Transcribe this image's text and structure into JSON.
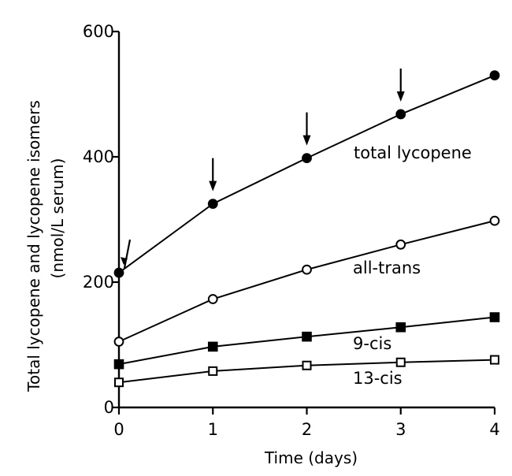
{
  "chart_data": {
    "type": "line",
    "xlabel": "Time (days)",
    "ylabel_line1": "Total lycopene and lycopene isomers",
    "ylabel_line2": "(nmol/L serum)",
    "xlim": [
      0,
      4
    ],
    "ylim": [
      0,
      600
    ],
    "x_ticks": [
      0,
      1,
      2,
      3,
      4
    ],
    "y_ticks": [
      0,
      200,
      400,
      600
    ],
    "x_tick_labels": [
      "0",
      "1",
      "2",
      "3",
      "4"
    ],
    "y_tick_labels": [
      "0",
      "200",
      "400",
      "600"
    ],
    "grid": false,
    "legend": "none (series labelled directly on plot)",
    "series": [
      {
        "name": "total lycopene",
        "marker": "filled-circle",
        "x": [
          0,
          1,
          2,
          3,
          4
        ],
        "values": [
          215,
          325,
          398,
          468,
          530
        ]
      },
      {
        "name": "all-trans",
        "marker": "open-circle",
        "x": [
          0,
          1,
          2,
          3,
          4
        ],
        "values": [
          105,
          173,
          220,
          260,
          298
        ]
      },
      {
        "name": "9-cis",
        "marker": "filled-square",
        "x": [
          0,
          1,
          2,
          3,
          4
        ],
        "values": [
          69,
          97,
          113,
          128,
          144
        ]
      },
      {
        "name": "13-cis",
        "marker": "open-square",
        "x": [
          0,
          1,
          2,
          3,
          4
        ],
        "values": [
          40,
          58,
          67,
          72,
          76
        ]
      }
    ],
    "arrows_at_days": [
      0,
      1,
      2,
      3
    ]
  }
}
